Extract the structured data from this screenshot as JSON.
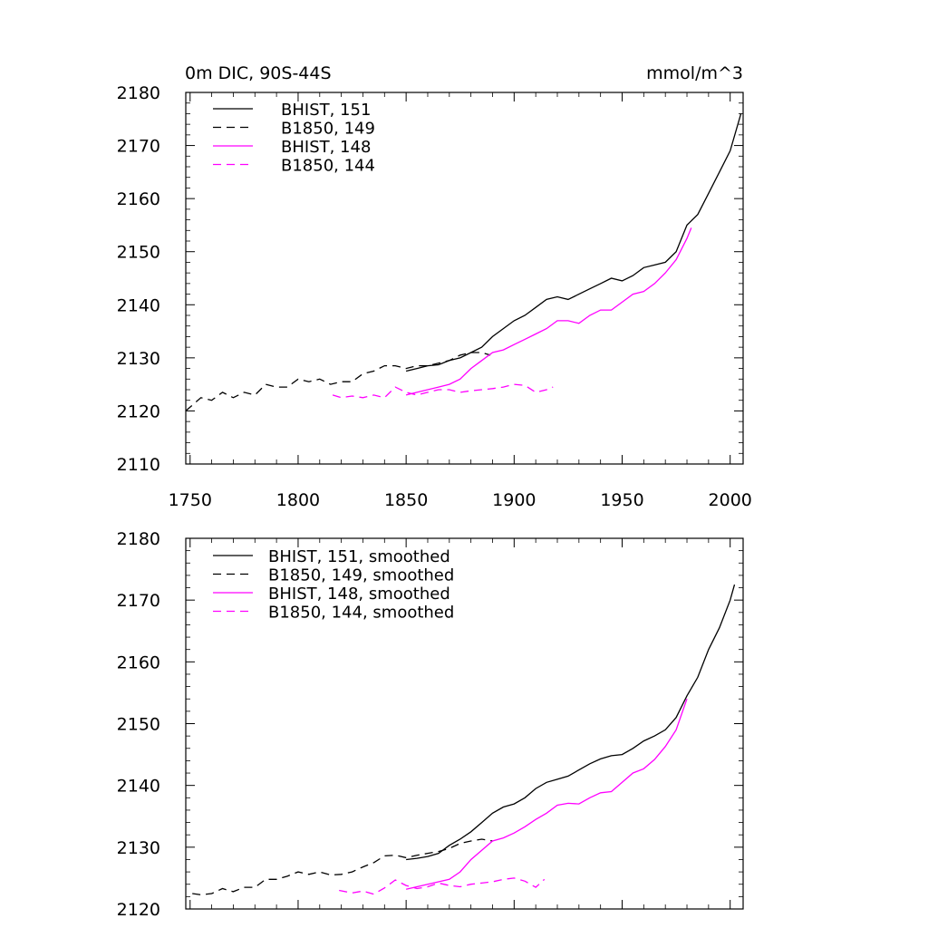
{
  "chart_data": [
    {
      "type": "line",
      "title_left": "0m DIC, 90S-44S",
      "title_right": "mmol/m^3",
      "xlim": [
        1748,
        2006
      ],
      "ylim": [
        2110,
        2180
      ],
      "xticks": [
        1750,
        1800,
        1850,
        1900,
        1950,
        2000
      ],
      "yticks": [
        2110,
        2120,
        2130,
        2140,
        2150,
        2160,
        2170,
        2180
      ],
      "grid": false,
      "legend_position": "top-left",
      "series": [
        {
          "name": "BHIST, 151",
          "color": "#000000",
          "dash": "solid",
          "x": [
            1850,
            1855,
            1860,
            1865,
            1870,
            1875,
            1880,
            1885,
            1890,
            1895,
            1900,
            1905,
            1910,
            1915,
            1920,
            1925,
            1930,
            1935,
            1940,
            1945,
            1950,
            1955,
            1960,
            1965,
            1970,
            1975,
            1980,
            1985,
            1990,
            1995,
            2000,
            2005
          ],
          "y": [
            2127.5,
            2128,
            2128.5,
            2128.7,
            2129.5,
            2130,
            2131,
            2132,
            2134,
            2135.5,
            2137,
            2138,
            2139.5,
            2141,
            2141.5,
            2141,
            2142,
            2143,
            2144,
            2145,
            2144.5,
            2145.5,
            2147,
            2147.5,
            2148,
            2150,
            2155,
            2157,
            2161,
            2165,
            2169,
            2176
          ]
        },
        {
          "name": "B1850, 149",
          "color": "#000000",
          "dash": "dashed",
          "x": [
            1748,
            1755,
            1760,
            1765,
            1770,
            1775,
            1780,
            1785,
            1790,
            1795,
            1800,
            1805,
            1810,
            1815,
            1820,
            1825,
            1830,
            1835,
            1840,
            1845,
            1850,
            1855,
            1860,
            1865,
            1870,
            1875,
            1880,
            1885,
            1889
          ],
          "y": [
            2120,
            2122.5,
            2122,
            2123.5,
            2122.5,
            2123.5,
            2123,
            2125,
            2124.5,
            2124.5,
            2126,
            2125.5,
            2126,
            2125,
            2125.5,
            2125.5,
            2127,
            2127.5,
            2128.5,
            2128.5,
            2128,
            2128.5,
            2128.5,
            2129,
            2129.5,
            2130.5,
            2131,
            2131,
            2130.5
          ]
        },
        {
          "name": "BHIST, 148",
          "color": "#ff00ff",
          "dash": "solid",
          "x": [
            1850,
            1855,
            1860,
            1865,
            1870,
            1875,
            1880,
            1885,
            1890,
            1895,
            1900,
            1905,
            1910,
            1915,
            1920,
            1925,
            1930,
            1935,
            1940,
            1945,
            1950,
            1955,
            1960,
            1965,
            1970,
            1975,
            1980,
            1982
          ],
          "y": [
            2123,
            2123.5,
            2124,
            2124.5,
            2125,
            2126,
            2128,
            2129.5,
            2131,
            2131.5,
            2132.5,
            2133.5,
            2134.5,
            2135.5,
            2137,
            2137,
            2136.5,
            2138,
            2139,
            2139,
            2140.5,
            2142,
            2142.5,
            2144,
            2146,
            2148.5,
            2152.5,
            2154.5
          ]
        },
        {
          "name": "B1850, 144",
          "color": "#ff00ff",
          "dash": "dashed",
          "x": [
            1816,
            1820,
            1825,
            1830,
            1835,
            1840,
            1845,
            1850,
            1855,
            1860,
            1865,
            1870,
            1875,
            1880,
            1885,
            1890,
            1895,
            1900,
            1905,
            1910,
            1915,
            1918
          ],
          "y": [
            2123,
            2122.5,
            2122.8,
            2122.5,
            2123,
            2122.5,
            2124.5,
            2123.5,
            2123,
            2123.5,
            2124,
            2124,
            2123.5,
            2123.8,
            2124,
            2124.2,
            2124.5,
            2125,
            2124.8,
            2123.5,
            2124,
            2124.5
          ]
        }
      ]
    },
    {
      "type": "line",
      "xlim": [
        1748,
        2006
      ],
      "ylim": [
        2120,
        2180
      ],
      "xticks": [
        1750,
        1800,
        1850,
        1900,
        1950,
        2000
      ],
      "yticks": [
        2120,
        2130,
        2140,
        2150,
        2160,
        2170,
        2180
      ],
      "grid": false,
      "legend_position": "top-left",
      "series": [
        {
          "name": "BHIST, 151, smoothed",
          "color": "#000000",
          "dash": "solid",
          "x": [
            1850,
            1855,
            1860,
            1865,
            1870,
            1875,
            1880,
            1885,
            1890,
            1895,
            1900,
            1905,
            1910,
            1915,
            1920,
            1925,
            1930,
            1935,
            1940,
            1945,
            1950,
            1955,
            1960,
            1965,
            1970,
            1975,
            1980,
            1985,
            1990,
            1995,
            2000,
            2002
          ],
          "y": [
            2128,
            2128.2,
            2128.5,
            2129,
            2130.3,
            2131.3,
            2132.5,
            2134,
            2135.5,
            2136.5,
            2137,
            2138,
            2139.5,
            2140.5,
            2141,
            2141.5,
            2142.5,
            2143.5,
            2144.3,
            2144.8,
            2145,
            2146,
            2147.2,
            2148,
            2149,
            2151,
            2154.5,
            2157.5,
            2162,
            2165.5,
            2170,
            2172.5
          ]
        },
        {
          "name": "B1850, 149, smoothed",
          "color": "#000000",
          "dash": "dashed",
          "x": [
            1751,
            1755,
            1760,
            1765,
            1770,
            1775,
            1780,
            1785,
            1790,
            1795,
            1800,
            1805,
            1810,
            1815,
            1820,
            1825,
            1830,
            1835,
            1840,
            1845,
            1850,
            1855,
            1860,
            1865,
            1870,
            1875,
            1880,
            1885,
            1890
          ],
          "y": [
            2122.5,
            2122.3,
            2122.5,
            2123.3,
            2122.8,
            2123.5,
            2123.5,
            2124.8,
            2124.8,
            2125.3,
            2126,
            2125.6,
            2126,
            2125.5,
            2125.6,
            2126,
            2126.8,
            2127.5,
            2128.6,
            2128.7,
            2128.3,
            2128.7,
            2129,
            2129.3,
            2129.8,
            2130.6,
            2131,
            2131.3,
            2131
          ]
        },
        {
          "name": "BHIST, 148, smoothed",
          "color": "#ff00ff",
          "dash": "solid",
          "x": [
            1850,
            1855,
            1860,
            1865,
            1870,
            1875,
            1880,
            1885,
            1890,
            1895,
            1900,
            1905,
            1910,
            1915,
            1920,
            1925,
            1930,
            1935,
            1940,
            1945,
            1950,
            1955,
            1960,
            1965,
            1970,
            1975,
            1980
          ],
          "y": [
            2123.2,
            2123.6,
            2124,
            2124.4,
            2124.8,
            2126,
            2128,
            2129.5,
            2131,
            2131.5,
            2132.3,
            2133.3,
            2134.5,
            2135.5,
            2136.8,
            2137.1,
            2137,
            2138,
            2138.8,
            2139,
            2140.5,
            2142,
            2142.7,
            2144.2,
            2146.3,
            2149,
            2154
          ]
        },
        {
          "name": "B1850, 144, smoothed",
          "color": "#ff00ff",
          "dash": "dashed",
          "x": [
            1819,
            1825,
            1830,
            1835,
            1840,
            1845,
            1850,
            1855,
            1860,
            1865,
            1870,
            1875,
            1880,
            1885,
            1890,
            1895,
            1900,
            1905,
            1910,
            1914
          ],
          "y": [
            2123,
            2122.6,
            2122.9,
            2122.4,
            2123.4,
            2124.7,
            2123.8,
            2123.3,
            2123.6,
            2124.2,
            2123.8,
            2123.6,
            2124,
            2124.2,
            2124.4,
            2124.8,
            2125,
            2124.5,
            2123.5,
            2124.8
          ]
        }
      ]
    }
  ]
}
